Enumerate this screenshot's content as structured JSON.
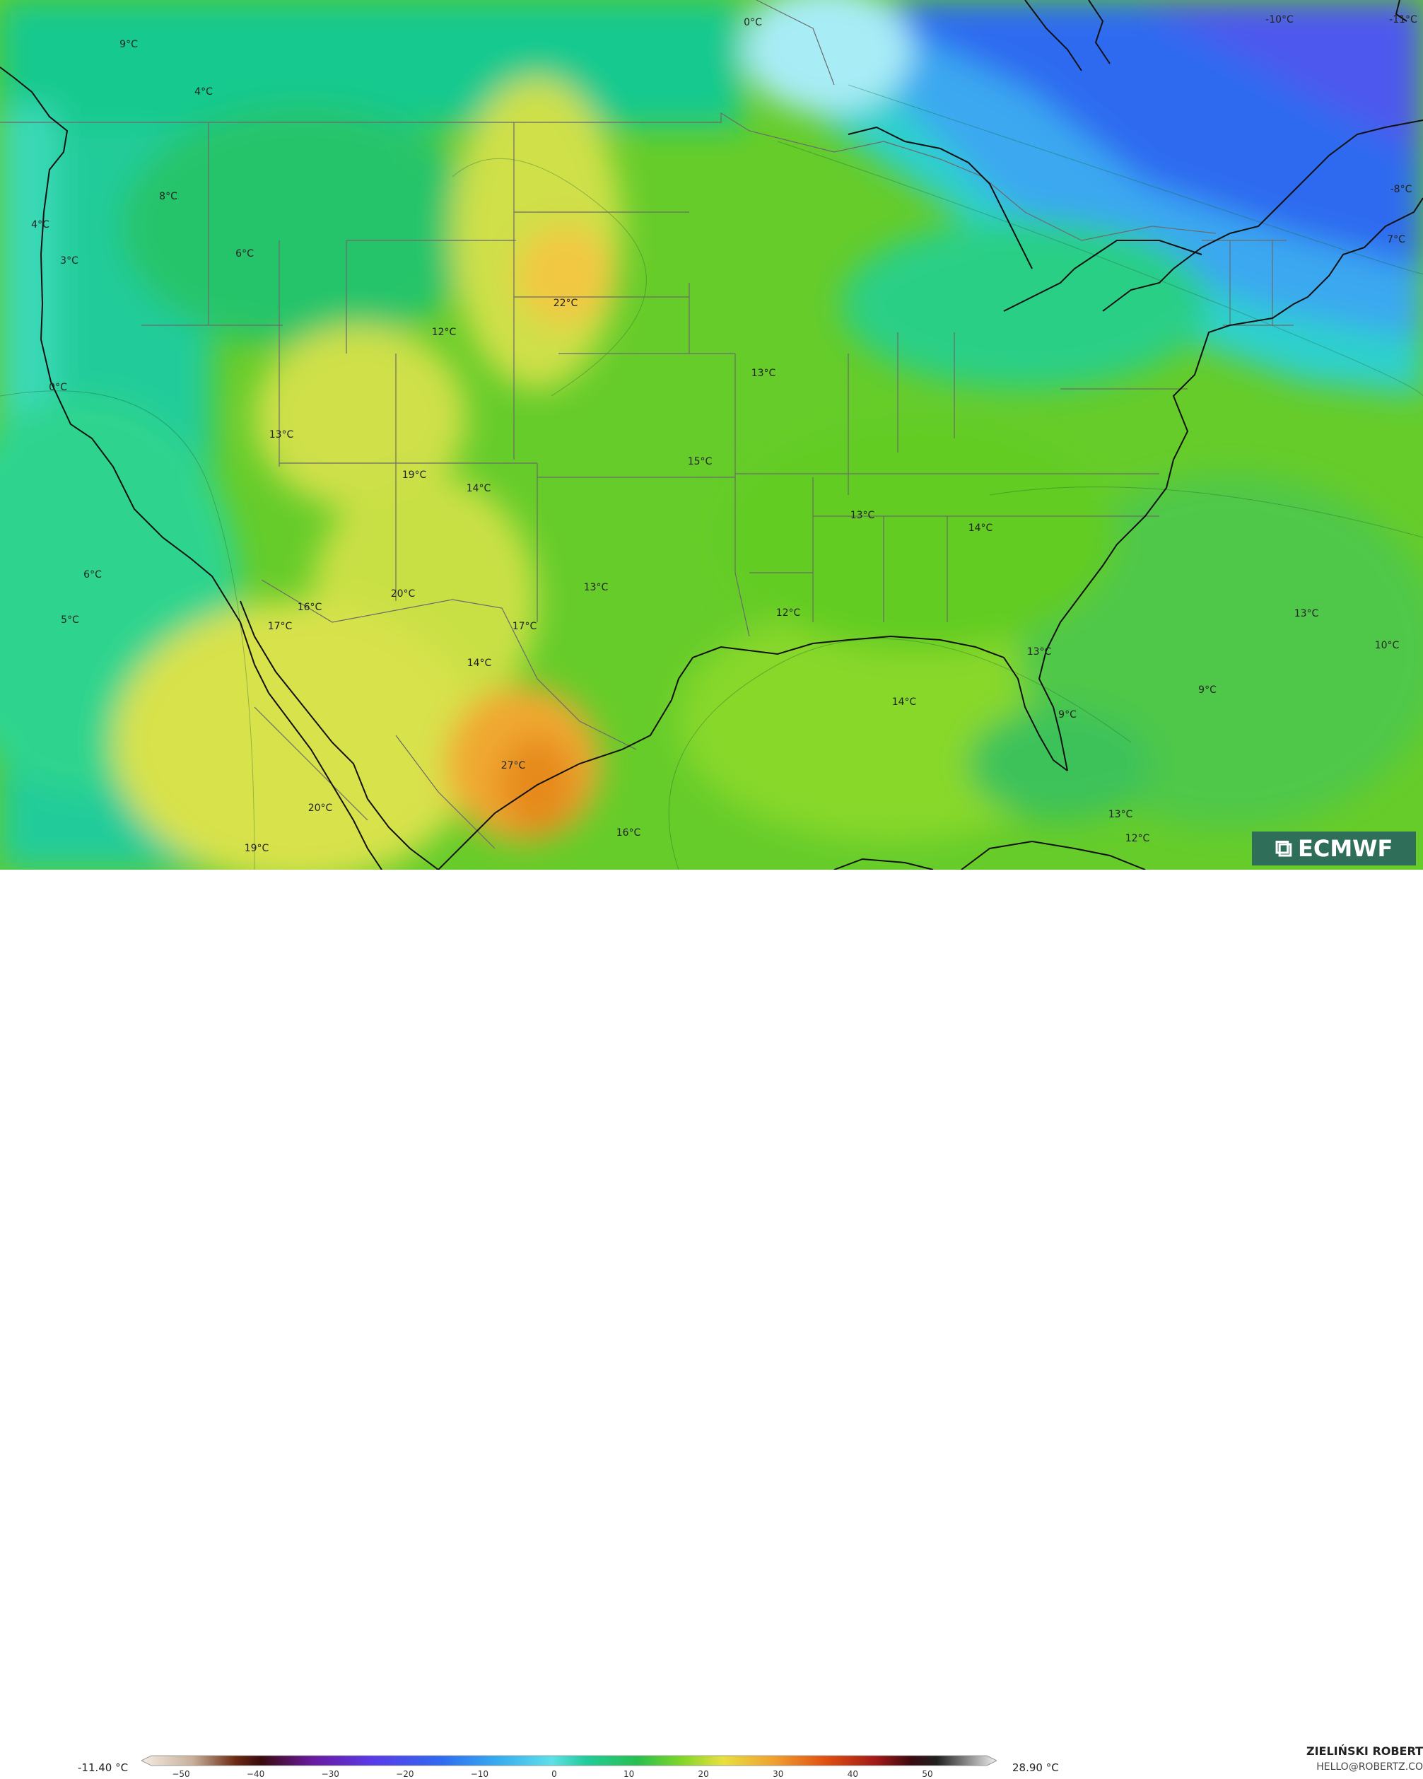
{
  "map": {
    "labels": [
      {
        "text": "9°C"
      },
      {
        "text": "4°C"
      },
      {
        "text": "0°C"
      },
      {
        "text": "-10°C"
      },
      {
        "text": "-11°C"
      },
      {
        "text": "8°C"
      },
      {
        "text": "4°C"
      },
      {
        "text": "3°C"
      },
      {
        "text": "6°C"
      },
      {
        "text": "-8°C"
      },
      {
        "text": "7°C"
      },
      {
        "text": "22°C"
      },
      {
        "text": "12°C"
      },
      {
        "text": "13°C"
      },
      {
        "text": "0°C"
      },
      {
        "text": "13°C"
      },
      {
        "text": "15°C"
      },
      {
        "text": "19°C"
      },
      {
        "text": "14°C"
      },
      {
        "text": "13°C"
      },
      {
        "text": "14°C"
      },
      {
        "text": "6°C"
      },
      {
        "text": "13°C"
      },
      {
        "text": "20°C"
      },
      {
        "text": "16°C"
      },
      {
        "text": "17°C"
      },
      {
        "text": "17°C"
      },
      {
        "text": "5°C"
      },
      {
        "text": "12°C"
      },
      {
        "text": "13°C"
      },
      {
        "text": "14°C"
      },
      {
        "text": "13°C"
      },
      {
        "text": "10°C"
      },
      {
        "text": "9°C"
      },
      {
        "text": "14°C"
      },
      {
        "text": "9°C"
      },
      {
        "text": "27°C"
      },
      {
        "text": "20°C"
      },
      {
        "text": "13°C"
      },
      {
        "text": "16°C"
      },
      {
        "text": "12°C"
      },
      {
        "text": "19°C"
      }
    ]
  },
  "logo": {
    "text": "ECMWF",
    "icon": "ecmwf-logo-icon"
  },
  "footer": {
    "scale_min": "-11.40 °C",
    "scale_max": "28.90 °C",
    "author": "ZIELIŃSKI ROBERT",
    "email": "HELLO@ROBERTZ.CO",
    "ticks": [
      "−50",
      "−40",
      "−30",
      "−20",
      "−10",
      "0",
      "10",
      "20",
      "30",
      "40",
      "50"
    ]
  }
}
